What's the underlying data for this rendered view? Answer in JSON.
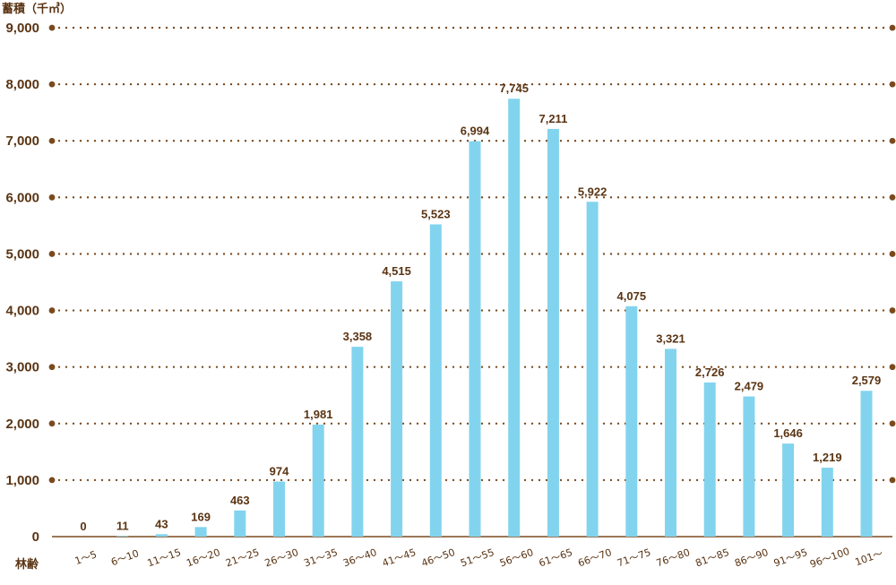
{
  "chart_data": {
    "type": "bar",
    "ylabel": "蓄積（千㎥）",
    "xlabel": "林齢",
    "ylim": [
      0,
      9000
    ],
    "yticks": [
      0,
      1000,
      2000,
      3000,
      4000,
      5000,
      6000,
      7000,
      8000,
      9000
    ],
    "ytick_labels": [
      "0",
      "1,000",
      "2,000",
      "3,000",
      "4,000",
      "5,000",
      "6,000",
      "7,000",
      "8,000",
      "9,000"
    ],
    "grid": "horizontal-dotted",
    "categories": [
      "1～5",
      "6～10",
      "11～15",
      "16～20",
      "21～25",
      "26～30",
      "31～35",
      "36～40",
      "41～45",
      "46～50",
      "51～55",
      "56～60",
      "61～65",
      "66～70",
      "71～75",
      "76～80",
      "81～85",
      "86～90",
      "91～95",
      "96～100",
      "101～"
    ],
    "values": [
      0,
      11,
      43,
      169,
      463,
      974,
      1981,
      3358,
      4515,
      5523,
      6994,
      7745,
      7211,
      5922,
      4075,
      3321,
      2726,
      2479,
      1646,
      1219,
      2579
    ],
    "value_labels": [
      "0",
      "11",
      "43",
      "169",
      "463",
      "974",
      "1,981",
      "3,358",
      "4,515",
      "5,523",
      "6,994",
      "7,745",
      "7,211",
      "5,922",
      "4,075",
      "3,321",
      "2,726",
      "2,479",
      "1,646",
      "1,219",
      "2,579"
    ],
    "colors": {
      "bar": "#82d4ee",
      "grid": "#7a4a1e",
      "text": "#5a3413"
    }
  }
}
